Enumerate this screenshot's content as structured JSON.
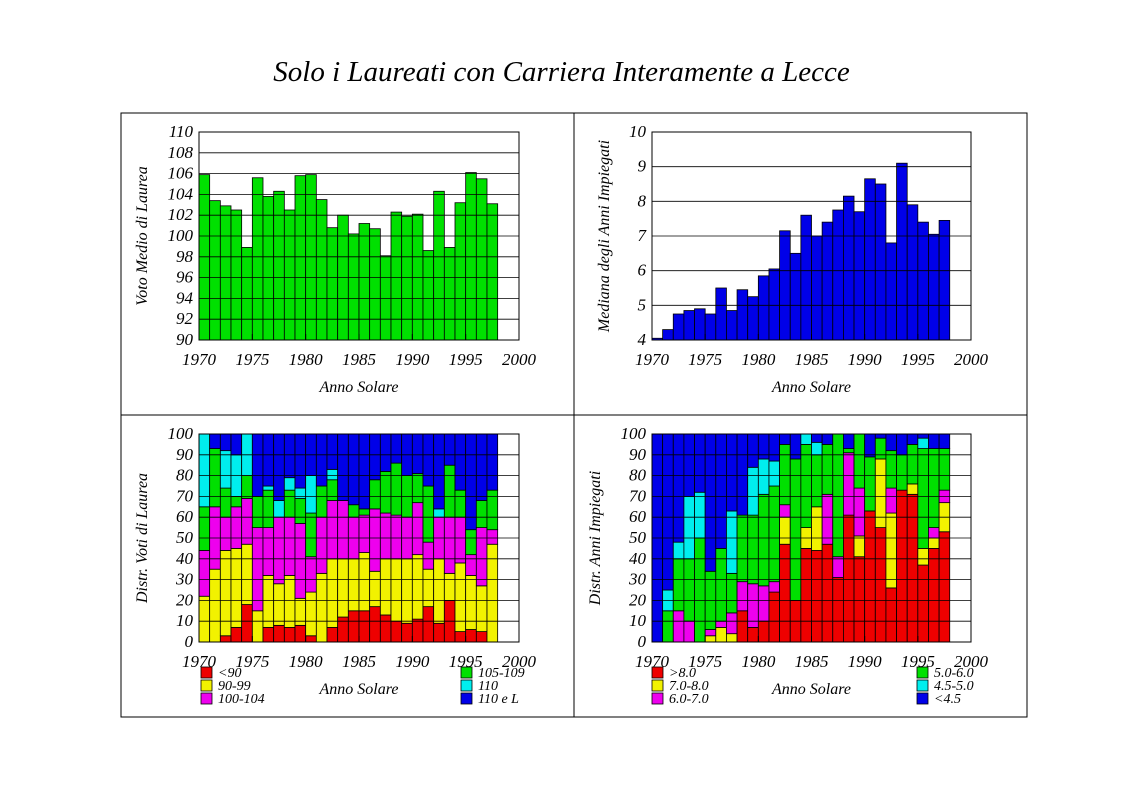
{
  "title": "Solo i Laureati con Carriera Interamente a Lecce",
  "colors": {
    "green": "#00e000",
    "blue": "#0000e8",
    "red": "#ee0000",
    "yellow": "#f2f200",
    "magenta": "#ee00ee",
    "cyan": "#00eeee",
    "frame": "#000000",
    "background": "#ffffff"
  },
  "chart_data": [
    {
      "id": "voto",
      "type": "bar",
      "xlabel": "Anno Solare",
      "ylabel": "Voto Medio di Laurea",
      "xlim": [
        1970,
        2000
      ],
      "ylim": [
        90,
        110
      ],
      "xticks": [
        1970,
        1975,
        1980,
        1985,
        1990,
        1995,
        2000
      ],
      "yticks": [
        90,
        92,
        94,
        96,
        98,
        100,
        102,
        104,
        106,
        108,
        110
      ],
      "grid": "horizontal",
      "color": "#00e000",
      "x": [
        1971,
        1972,
        1973,
        1974,
        1975,
        1976,
        1977,
        1978,
        1979,
        1980,
        1981,
        1982,
        1983,
        1984,
        1985,
        1986,
        1987,
        1988,
        1989,
        1990,
        1991,
        1992,
        1993,
        1994,
        1995,
        1996,
        1997,
        1998
      ],
      "values": [
        105.9,
        103.4,
        102.9,
        102.5,
        98.9,
        105.6,
        103.8,
        104.3,
        102.5,
        105.8,
        105.9,
        103.5,
        100.8,
        102.0,
        100.2,
        101.2,
        100.7,
        98.1,
        102.3,
        101.9,
        102.1,
        98.6,
        104.3,
        98.9,
        103.2,
        106.1,
        105.5,
        103.1
      ]
    },
    {
      "id": "mediana",
      "type": "bar",
      "xlabel": "Anno Solare",
      "ylabel": "Mediana degli Anni Impiegati",
      "xlim": [
        1970,
        2000
      ],
      "ylim": [
        4,
        10
      ],
      "xticks": [
        1970,
        1975,
        1980,
        1985,
        1990,
        1995,
        2000
      ],
      "yticks": [
        4,
        5,
        6,
        7,
        8,
        9,
        10
      ],
      "grid": "horizontal",
      "color": "#0000e8",
      "x": [
        1971,
        1972,
        1973,
        1974,
        1975,
        1976,
        1977,
        1978,
        1979,
        1980,
        1981,
        1982,
        1983,
        1984,
        1985,
        1986,
        1987,
        1988,
        1989,
        1990,
        1991,
        1992,
        1993,
        1994,
        1995,
        1996,
        1997,
        1998
      ],
      "values": [
        4.05,
        4.3,
        4.75,
        4.85,
        4.9,
        4.75,
        5.5,
        4.85,
        5.45,
        5.25,
        5.85,
        6.05,
        7.15,
        6.5,
        7.6,
        7.0,
        7.4,
        7.75,
        8.15,
        7.7,
        8.65,
        8.5,
        6.8,
        9.1,
        7.9,
        7.4,
        7.05,
        7.45
      ]
    },
    {
      "id": "voti",
      "type": "bar",
      "stacked": true,
      "xlabel": "Anno Solare",
      "ylabel": "Distr. Voti di Laurea",
      "xlim": [
        1970,
        2000
      ],
      "ylim": [
        0,
        100
      ],
      "xticks": [
        1970,
        1975,
        1980,
        1985,
        1990,
        1995,
        2000
      ],
      "yticks": [
        0,
        10,
        20,
        30,
        40,
        50,
        60,
        70,
        80,
        90,
        100
      ],
      "grid": "horizontal",
      "legend": "bottom",
      "x": [
        1971,
        1972,
        1973,
        1974,
        1975,
        1976,
        1977,
        1978,
        1979,
        1980,
        1981,
        1982,
        1983,
        1984,
        1985,
        1986,
        1987,
        1988,
        1989,
        1990,
        1991,
        1992,
        1993,
        1994,
        1995,
        1996,
        1997,
        1998
      ],
      "series": [
        {
          "name": "<90",
          "color": "#ee0000",
          "values": [
            0,
            0,
            3,
            7,
            18,
            0,
            7,
            8,
            7,
            8,
            3,
            0,
            7,
            12,
            15,
            15,
            17,
            13,
            10,
            9,
            11,
            17,
            9,
            20,
            5,
            6,
            5,
            0
          ]
        },
        {
          "name": "90-99",
          "color": "#f2f200",
          "values": [
            22,
            35,
            41,
            38,
            29,
            15,
            25,
            20,
            25,
            13,
            21,
            33,
            33,
            28,
            25,
            28,
            17,
            27,
            30,
            31,
            31,
            18,
            31,
            13,
            33,
            26,
            22,
            47
          ]
        },
        {
          "name": "100-104",
          "color": "#ee00ee",
          "values": [
            22,
            30,
            16,
            20,
            22,
            40,
            23,
            32,
            28,
            36,
            17,
            27,
            28,
            28,
            20,
            18,
            30,
            22,
            21,
            20,
            25,
            13,
            20,
            27,
            22,
            10,
            28,
            7
          ]
        },
        {
          "name": "105-109",
          "color": "#00e000",
          "values": [
            21,
            28,
            14,
            5,
            11,
            15,
            18,
            0,
            13,
            12,
            21,
            15,
            10,
            0,
            6,
            3,
            14,
            20,
            25,
            20,
            14,
            27,
            0,
            25,
            13,
            12,
            13,
            19
          ]
        },
        {
          "name": "110",
          "color": "#00eeee",
          "values": [
            35,
            0,
            18,
            20,
            20,
            0,
            2,
            8,
            6,
            5,
            18,
            0,
            5,
            0,
            0,
            0,
            0,
            0,
            0,
            0,
            0,
            0,
            4,
            0,
            0,
            0,
            0,
            0
          ]
        },
        {
          "name": "110 e L",
          "color": "#0000e8",
          "values": [
            0,
            7,
            8,
            10,
            0,
            30,
            25,
            32,
            21,
            26,
            20,
            25,
            17,
            32,
            34,
            36,
            22,
            18,
            14,
            20,
            19,
            25,
            36,
            15,
            27,
            46,
            32,
            27
          ]
        }
      ]
    },
    {
      "id": "anni",
      "type": "bar",
      "stacked": true,
      "xlabel": "Anno Solare",
      "ylabel": "Distr. Anni Impiegati",
      "xlim": [
        1970,
        2000
      ],
      "ylim": [
        0,
        100
      ],
      "xticks": [
        1970,
        1975,
        1980,
        1985,
        1990,
        1995,
        2000
      ],
      "yticks": [
        0,
        10,
        20,
        30,
        40,
        50,
        60,
        70,
        80,
        90,
        100
      ],
      "grid": "horizontal",
      "legend": "bottom",
      "x": [
        1971,
        1972,
        1973,
        1974,
        1975,
        1976,
        1977,
        1978,
        1979,
        1980,
        1981,
        1982,
        1983,
        1984,
        1985,
        1986,
        1987,
        1988,
        1989,
        1990,
        1991,
        1992,
        1993,
        1994,
        1995,
        1996,
        1997,
        1998
      ],
      "series": [
        {
          "name": ">8.0",
          "color": "#ee0000",
          "values": [
            0,
            0,
            0,
            0,
            0,
            0,
            0,
            0,
            15,
            7,
            10,
            24,
            47,
            20,
            45,
            44,
            47,
            31,
            61,
            41,
            63,
            55,
            26,
            73,
            71,
            37,
            45,
            53
          ]
        },
        {
          "name": "7.0-8.0",
          "color": "#f2f200",
          "values": [
            0,
            0,
            0,
            0,
            0,
            3,
            7,
            4,
            0,
            0,
            0,
            0,
            13,
            0,
            10,
            21,
            0,
            0,
            0,
            10,
            0,
            33,
            36,
            0,
            5,
            8,
            5,
            14
          ]
        },
        {
          "name": "6.0-7.0",
          "color": "#ee00ee",
          "values": [
            0,
            0,
            15,
            10,
            0,
            3,
            3,
            10,
            14,
            21,
            17,
            5,
            6,
            0,
            0,
            0,
            24,
            10,
            30,
            23,
            0,
            0,
            12,
            0,
            0,
            0,
            5,
            6
          ]
        },
        {
          "name": "5.0-6.0",
          "color": "#00e000",
          "values": [
            0,
            15,
            25,
            30,
            50,
            28,
            35,
            19,
            32,
            33,
            44,
            46,
            29,
            68,
            40,
            25,
            24,
            59,
            2,
            26,
            26,
            10,
            18,
            17,
            19,
            48,
            38,
            20
          ]
        },
        {
          "name": "4.5-5.0",
          "color": "#00eeee",
          "values": [
            0,
            10,
            8,
            30,
            22,
            0,
            0,
            30,
            0,
            23,
            17,
            12,
            0,
            0,
            5,
            6,
            0,
            0,
            0,
            0,
            0,
            0,
            0,
            0,
            0,
            5,
            0,
            0
          ]
        },
        {
          "name": "<4.5",
          "color": "#0000e8",
          "values": [
            100,
            75,
            52,
            30,
            28,
            66,
            55,
            37,
            39,
            16,
            12,
            13,
            5,
            12,
            0,
            4,
            5,
            0,
            7,
            0,
            11,
            2,
            8,
            10,
            5,
            2,
            7,
            7
          ]
        }
      ]
    }
  ]
}
